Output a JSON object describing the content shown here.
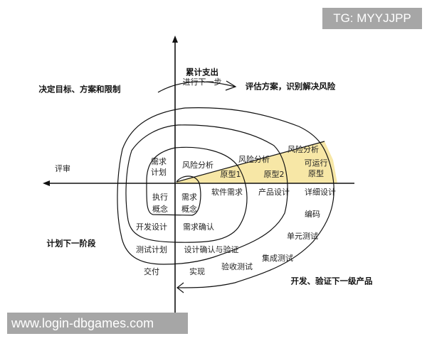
{
  "watermarks": {
    "top_right": "TG: MYYJJPP",
    "bottom_left": "www.login-dbgames.com"
  },
  "colors": {
    "prototype_fill": "#f7e7a6",
    "line": "#111111",
    "watermark_bg": "#a6a6a6"
  },
  "quadrants": {
    "top_left": "决定目标、方案和限制",
    "top_right": "评估方案，识别解决风险",
    "bottom_left": "计划下一阶段",
    "bottom_right": "开发、验证下一级产品"
  },
  "axis": {
    "cumulative_cost": "累计支出",
    "progress": "进行下一步",
    "review": "评审"
  },
  "labels": {
    "risk1": "风险分析",
    "risk2": "风险分析",
    "risk3": "风险分析",
    "req_plan": [
      "需求",
      "计划"
    ],
    "proto1": "原型1",
    "proto2": "原型2",
    "op_proto": [
      "可运行",
      "原型"
    ],
    "exec_concept": [
      "执行",
      "概念"
    ],
    "req_concept": [
      "需求",
      "概念"
    ],
    "software_req": "软件需求",
    "product_design": "产品设计",
    "detail_design": "详细设计",
    "coding": "编码",
    "dev_design": "开发设计",
    "req_confirm": "需求确认",
    "unit_test": "单元测试",
    "test_plan": "测试计划",
    "design_verify": "设计确认与验证",
    "integration_test": "集成测试",
    "delivery": "交付",
    "implement": "实现",
    "acceptance_test": "验收测试"
  }
}
